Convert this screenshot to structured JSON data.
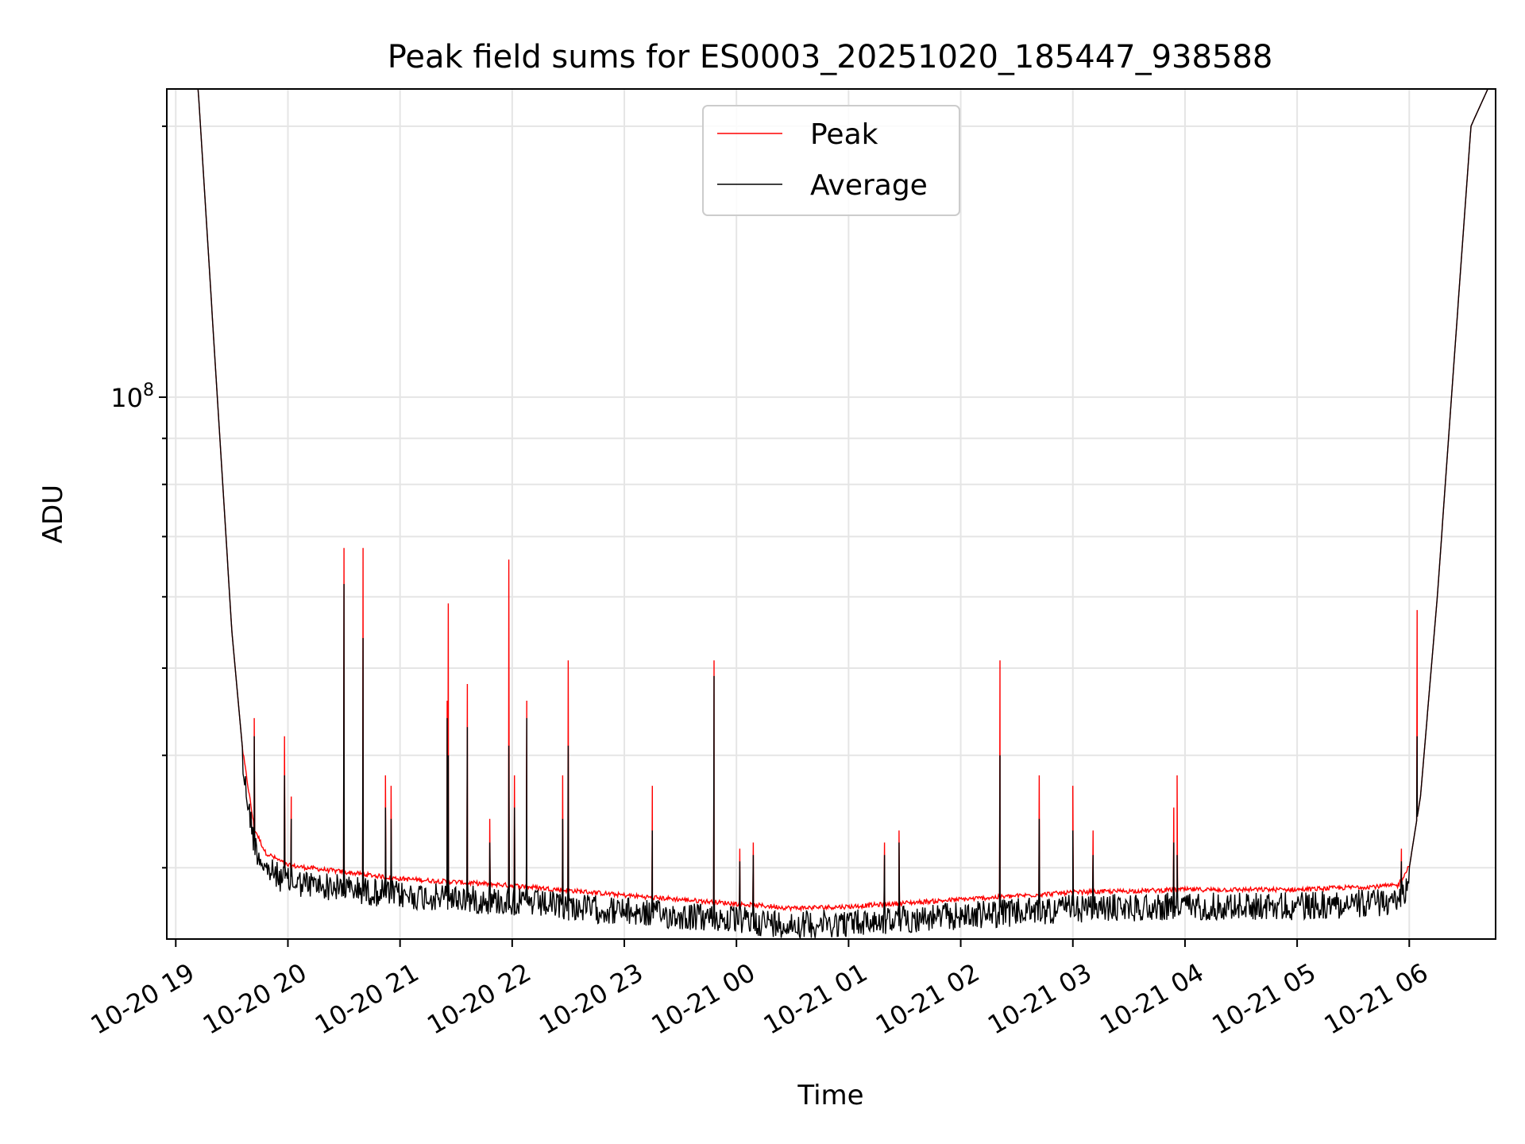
{
  "chart_data": {
    "type": "line",
    "title": "Peak field sums for ES0003_20251020_185447_938588",
    "xlabel": "Time",
    "ylabel": "ADU",
    "yscale": "log",
    "ylim": [
      25000000,
      220000000
    ],
    "xlim_hours": [
      -0.08,
      11.77
    ],
    "grid": true,
    "legend_position": "upper-center",
    "x_tick_labels": [
      "10-20 19",
      "10-20 20",
      "10-20 21",
      "10-20 22",
      "10-20 23",
      "10-21 00",
      "10-21 01",
      "10-21 02",
      "10-21 03",
      "10-21 04",
      "10-21 05",
      "10-21 06"
    ],
    "y_tick_labels": [
      {
        "base": "10",
        "exp": "8"
      }
    ],
    "series": [
      {
        "name": "Peak",
        "color": "#ff0000"
      },
      {
        "name": "Average",
        "color": "#000000"
      }
    ],
    "baseline_hours": [
      0.1,
      0.2,
      0.35,
      0.5,
      0.6,
      0.7,
      0.8,
      1.0,
      1.5,
      2.0,
      3.0,
      4.0,
      5.0,
      5.5,
      6.0,
      7.0,
      8.0,
      9.0,
      10.0,
      10.9,
      11.0,
      11.1,
      11.25,
      11.4,
      11.55,
      11.7
    ],
    "baseline_adu": [
      220000000,
      220000000,
      110000000,
      55000000,
      40000000,
      33000000,
      31000000,
      30000000,
      29500000,
      29000000,
      28500000,
      27800000,
      27200000,
      26900000,
      27000000,
      27500000,
      28000000,
      28200000,
      28200000,
      28500000,
      30000000,
      36000000,
      60000000,
      110000000,
      200000000,
      220000000
    ],
    "spikes_peak": [
      [
        0.7,
        44000000
      ],
      [
        0.97,
        42000000
      ],
      [
        1.03,
        36000000
      ],
      [
        1.5,
        68000000
      ],
      [
        1.67,
        68000000
      ],
      [
        1.87,
        38000000
      ],
      [
        1.92,
        37000000
      ],
      [
        2.42,
        46000000
      ],
      [
        2.43,
        59000000
      ],
      [
        2.6,
        48000000
      ],
      [
        2.8,
        34000000
      ],
      [
        2.97,
        66000000
      ],
      [
        3.02,
        38000000
      ],
      [
        3.13,
        46000000
      ],
      [
        3.45,
        38000000
      ],
      [
        3.5,
        51000000
      ],
      [
        4.25,
        37000000
      ],
      [
        4.8,
        51000000
      ],
      [
        5.03,
        31500000
      ],
      [
        5.15,
        32000000
      ],
      [
        6.32,
        32000000
      ],
      [
        6.45,
        33000000
      ],
      [
        7.35,
        51000000
      ],
      [
        7.7,
        38000000
      ],
      [
        8.0,
        37000000
      ],
      [
        8.18,
        33000000
      ],
      [
        8.9,
        35000000
      ],
      [
        8.93,
        38000000
      ],
      [
        10.93,
        31500000
      ],
      [
        11.07,
        58000000
      ]
    ],
    "spikes_average": [
      [
        0.7,
        42000000
      ],
      [
        0.97,
        38000000
      ],
      [
        1.03,
        34000000
      ],
      [
        1.5,
        62000000
      ],
      [
        1.67,
        54000000
      ],
      [
        1.87,
        35000000
      ],
      [
        1.92,
        34000000
      ],
      [
        2.42,
        44000000
      ],
      [
        2.43,
        40000000
      ],
      [
        2.6,
        43000000
      ],
      [
        2.8,
        32000000
      ],
      [
        2.97,
        41000000
      ],
      [
        3.02,
        35000000
      ],
      [
        3.13,
        44000000
      ],
      [
        3.45,
        34000000
      ],
      [
        3.5,
        41000000
      ],
      [
        4.25,
        33000000
      ],
      [
        4.8,
        49000000
      ],
      [
        5.03,
        30500000
      ],
      [
        5.15,
        31000000
      ],
      [
        6.32,
        31000000
      ],
      [
        6.45,
        32000000
      ],
      [
        7.35,
        40000000
      ],
      [
        7.7,
        34000000
      ],
      [
        8.0,
        33000000
      ],
      [
        8.18,
        31000000
      ],
      [
        8.9,
        32000000
      ],
      [
        8.93,
        31000000
      ],
      [
        10.93,
        30500000
      ],
      [
        11.07,
        42000000
      ]
    ]
  }
}
